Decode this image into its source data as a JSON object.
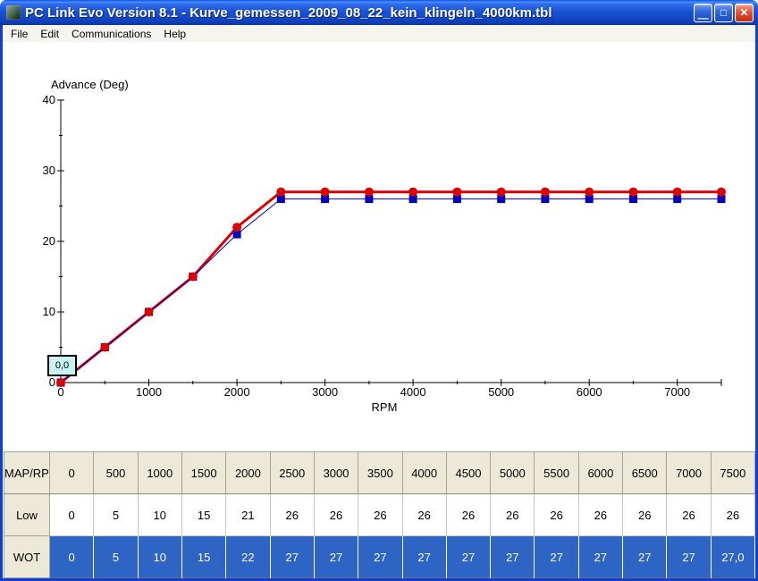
{
  "window": {
    "title": "PC Link Evo Version 8.1 - Kurve_gemessen_2009_08_22_kein_klingeln_4000km.tbl",
    "icons": {
      "minimize": "—",
      "maximize": "□",
      "close": "✕"
    }
  },
  "menu": {
    "items": [
      "File",
      "Edit",
      "Communications",
      "Help"
    ]
  },
  "chart_data": {
    "type": "line",
    "title": "Advance (Deg)",
    "xlabel": "RPM",
    "xlim": [
      0,
      7500
    ],
    "ylim": [
      0,
      40
    ],
    "grid": false,
    "x_major_ticks": [
      0,
      1000,
      2000,
      3000,
      4000,
      5000,
      6000,
      7000,
      7500
    ],
    "x_labeled_ticks": [
      0,
      1000,
      2000,
      3000,
      4000,
      5000,
      6000,
      7000
    ],
    "x_minor_ticks": [
      500,
      1500,
      2500,
      3500,
      4500,
      5500,
      6500
    ],
    "y_major_ticks": [
      0,
      10,
      20,
      30,
      40
    ],
    "y_minor_ticks": [
      5,
      15,
      25,
      35
    ],
    "x": [
      0,
      500,
      1000,
      1500,
      2000,
      2500,
      3000,
      3500,
      4000,
      4500,
      5000,
      5500,
      6000,
      6500,
      7000,
      7500
    ],
    "series": [
      {
        "name": "Low",
        "color": "#0000bf",
        "marker": "square",
        "line_width": 1,
        "values": [
          0,
          5,
          10,
          15,
          21,
          26,
          26,
          26,
          26,
          26,
          26,
          26,
          26,
          26,
          26,
          26
        ]
      },
      {
        "name": "WOT",
        "color": "#dd0000",
        "marker": "circle",
        "line_width": 3,
        "values": [
          0,
          5,
          10,
          15,
          22,
          27,
          27,
          27,
          27,
          27,
          27,
          27,
          27,
          27,
          27,
          27
        ]
      }
    ],
    "cursor_box_value": "0,0"
  },
  "table": {
    "corner_label": "MAP/RPM",
    "rpm_headers": [
      "0",
      "500",
      "1000",
      "1500",
      "2000",
      "2500",
      "3000",
      "3500",
      "4000",
      "4500",
      "5000",
      "5500",
      "6000",
      "6500",
      "7000",
      "7500"
    ],
    "rows": [
      {
        "label": "Low",
        "selected": false,
        "values": [
          "0",
          "5",
          "10",
          "15",
          "21",
          "26",
          "26",
          "26",
          "26",
          "26",
          "26",
          "26",
          "26",
          "26",
          "26",
          "26"
        ]
      },
      {
        "label": "WOT",
        "selected": true,
        "values": [
          "0",
          "5",
          "10",
          "15",
          "22",
          "27",
          "27",
          "27",
          "27",
          "27",
          "27",
          "27",
          "27",
          "27",
          "27",
          "27,0"
        ]
      }
    ]
  },
  "colors": {
    "selection_blue": "#2e65c4",
    "window_border": "#0f3fd4",
    "panel_beige": "#ece9d8",
    "wot_red": "#dd0000",
    "low_blue": "#0000bf",
    "cursor_box_bg": "#c9f2f2"
  }
}
